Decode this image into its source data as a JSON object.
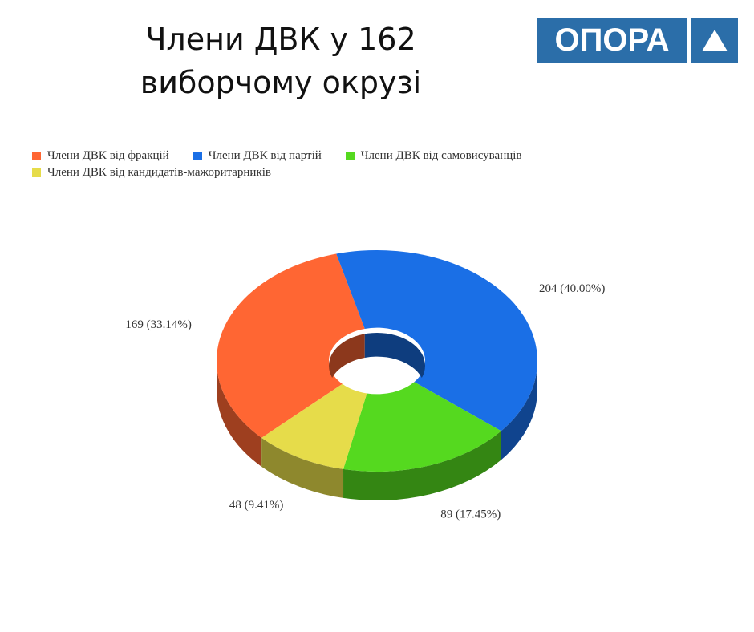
{
  "logo": "ОПОРА",
  "chart_data": {
    "type": "pie",
    "title": "Члени ДВК  у 162 виборчому окрузі",
    "categories": [
      "Члени ДВК від фракцій",
      "Члени ДВК від партій",
      "Члени ДВК від самовисуванців",
      "Члени ДВК від кандидатів-мажоритарників"
    ],
    "values": [
      169,
      204,
      89,
      48
    ],
    "value_labels": [
      "169 (33.14%)",
      "204 (40.00%)",
      "89 (17.45%)",
      "48 (9.41%)"
    ],
    "colors": [
      "#ff6633",
      "#1a6fe6",
      "#55d91f",
      "#e6dc4a"
    ],
    "legend": "top"
  }
}
